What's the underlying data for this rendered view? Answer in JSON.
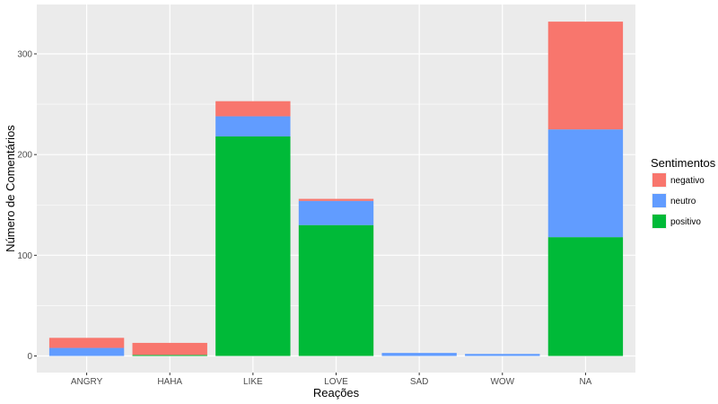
{
  "chart_data": {
    "type": "bar",
    "stacked": true,
    "categories": [
      "ANGRY",
      "HAHA",
      "LIKE",
      "LOVE",
      "SAD",
      "WOW",
      "NA"
    ],
    "series": [
      {
        "name": "positivo",
        "color": "#00BA38",
        "values": [
          0,
          1,
          218,
          130,
          0,
          0,
          118
        ]
      },
      {
        "name": "neutro",
        "color": "#619CFF",
        "values": [
          8,
          0,
          20,
          24,
          3,
          2,
          107
        ]
      },
      {
        "name": "negativo",
        "color": "#F8766D",
        "values": [
          10,
          12,
          15,
          2,
          0,
          0,
          107
        ]
      }
    ],
    "xlabel": "Reações",
    "ylabel": "Número de Comentários",
    "ylim": [
      0,
      350
    ],
    "yticks": [
      0,
      100,
      200,
      300
    ],
    "grid": true,
    "legend": {
      "title": "Sentimentos",
      "placement": "right",
      "order": [
        "negativo",
        "neutro",
        "positivo"
      ]
    }
  }
}
